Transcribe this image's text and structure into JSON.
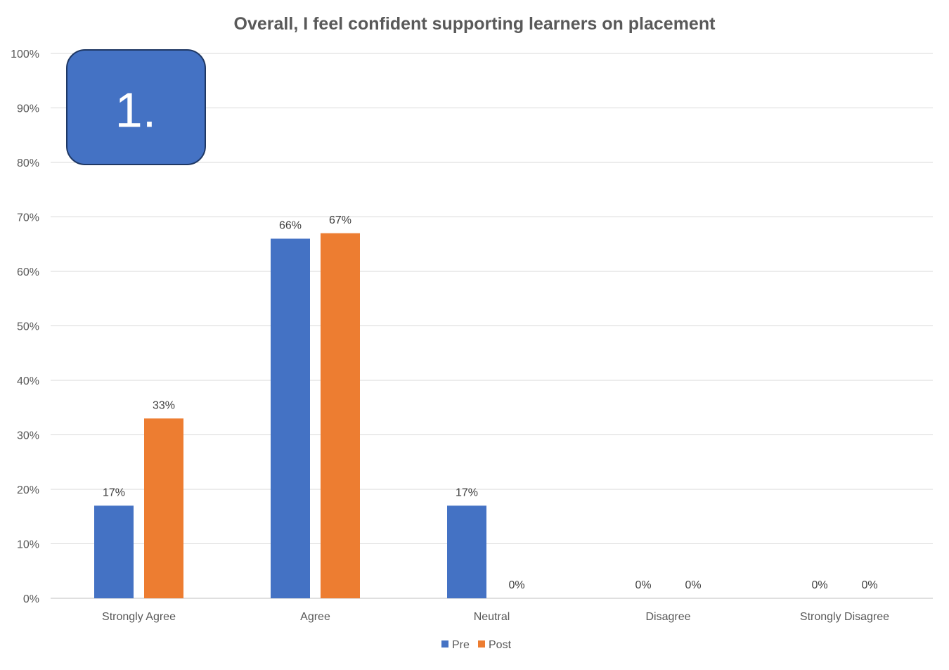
{
  "chart_data": {
    "type": "bar",
    "title": "Overall, I feel confident supporting learners on placement",
    "categories": [
      "Strongly Agree",
      "Agree",
      "Neutral",
      "Disagree",
      "Strongly Disagree"
    ],
    "series": [
      {
        "name": "Pre",
        "values": [
          17,
          66,
          17,
          0,
          0
        ],
        "color": "#4472C4"
      },
      {
        "name": "Post",
        "values": [
          33,
          67,
          0,
          0,
          0
        ],
        "color": "#ED7D31"
      }
    ],
    "data_labels": [
      [
        "17%",
        "66%",
        "17%",
        "0%",
        "0%"
      ],
      [
        "33%",
        "67%",
        "0%",
        "0%",
        "0%"
      ]
    ],
    "ylim": [
      0,
      100
    ],
    "yticks": [
      "0%",
      "10%",
      "20%",
      "30%",
      "40%",
      "50%",
      "60%",
      "70%",
      "80%",
      "90%",
      "100%"
    ],
    "xlabel": "",
    "ylabel": "",
    "grid": true,
    "legend_position": "bottom"
  },
  "badge": {
    "text": "1.",
    "color": "#4472C4"
  }
}
